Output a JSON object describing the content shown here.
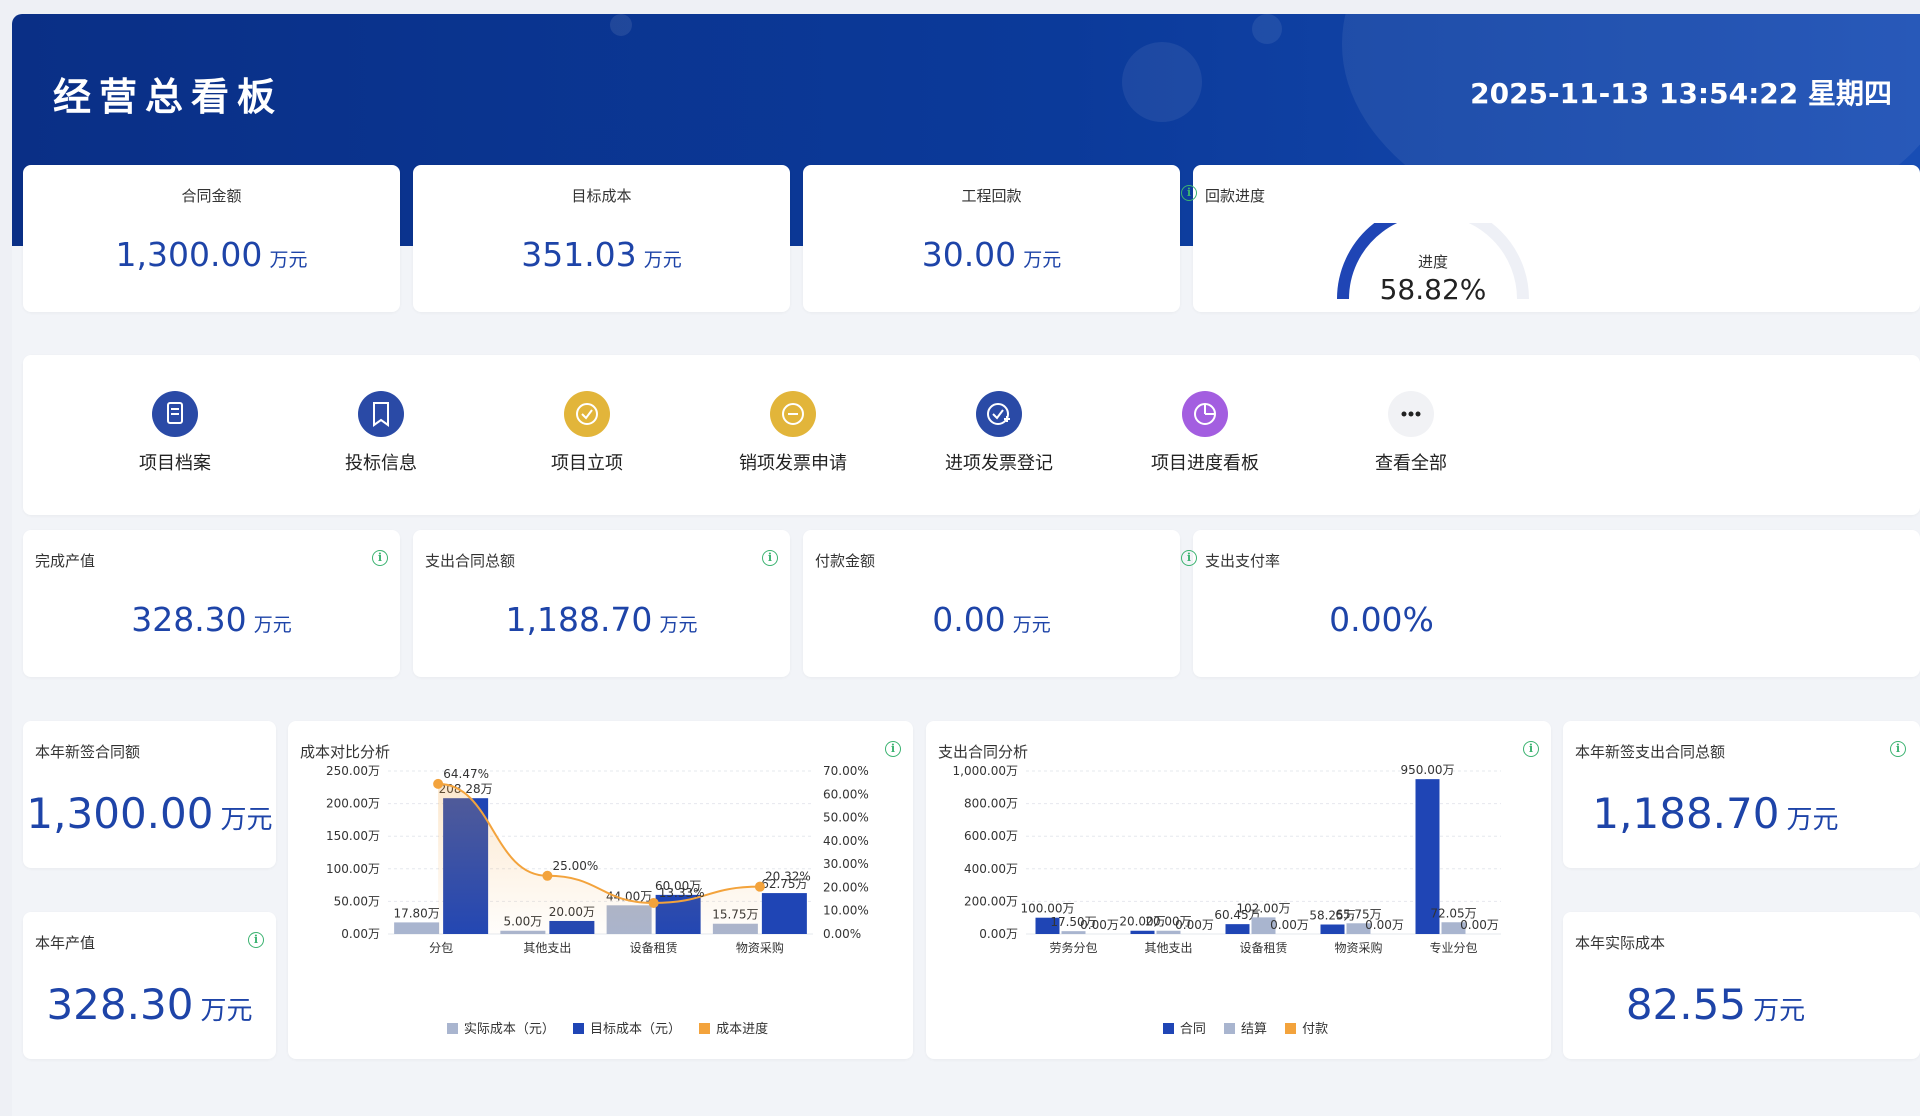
{
  "header": {
    "title": "经营总看板",
    "datetime": "2025-11-13 13:54:22 星期四"
  },
  "top_stats": [
    {
      "label": "合同金额",
      "value": "1,300.00",
      "unit": "万元"
    },
    {
      "label": "目标成本",
      "value": "351.03",
      "unit": "万元"
    },
    {
      "label": "工程回款",
      "value": "30.00",
      "unit": "万元"
    }
  ],
  "progress_card": {
    "label": "回款进度",
    "gauge_label": "进度",
    "gauge_value": "58.82%",
    "gauge_fraction": 0.5882
  },
  "shortcuts": [
    {
      "label": "项目档案",
      "icon": "file-icon",
      "color": "#2a4aa6"
    },
    {
      "label": "投标信息",
      "icon": "bookmark-icon",
      "color": "#2a4aa6"
    },
    {
      "label": "项目立项",
      "icon": "check-circle-icon",
      "color": "#e2b53a"
    },
    {
      "label": "销项发票申请",
      "icon": "minus-circle-icon",
      "color": "#e2b53a"
    },
    {
      "label": "进项发票登记",
      "icon": "check-plus-icon",
      "color": "#2a4aa6"
    },
    {
      "label": "项目进度看板",
      "icon": "pie-chart-icon",
      "color": "#a35ee0"
    },
    {
      "label": "查看全部",
      "icon": "more-icon",
      "color": "#f1f2f5"
    }
  ],
  "mid_stats": [
    {
      "label": "完成产值",
      "value": "328.30",
      "unit": "万元"
    },
    {
      "label": "支出合同总额",
      "value": "1,188.70",
      "unit": "万元"
    },
    {
      "label": "付款金额",
      "value": "0.00",
      "unit": "万元"
    },
    {
      "label": "支出支付率",
      "value": "0.00%",
      "unit": ""
    }
  ],
  "side_stats": {
    "new_contract": {
      "label": "本年新签合同额",
      "value": "1,300.00",
      "unit": "万元"
    },
    "annual_output": {
      "label": "本年产值",
      "value": "328.30",
      "unit": "万元"
    },
    "new_expense_contract": {
      "label": "本年新签支出合同总额",
      "value": "1,188.70",
      "unit": "万元"
    },
    "actual_cost": {
      "label": "本年实际成本",
      "value": "82.55",
      "unit": "万元"
    }
  },
  "colors": {
    "header_blue": "#0a2f86",
    "value_blue": "#1e44a8",
    "bar_dark": "#1f45b5",
    "bar_gray": "#a9b5cf",
    "line_orange": "#f3a33c",
    "info_green": "#3cb371"
  },
  "chart_data": [
    {
      "type": "bar",
      "title": "成本对比分析",
      "categories": [
        "分包",
        "其他支出",
        "设备租赁",
        "物资采购"
      ],
      "series": [
        {
          "name": "实际成本（元）",
          "values": [
            17.8,
            5.0,
            44.0,
            15.75
          ],
          "labels": [
            "17.80万",
            "5.00万",
            "44.00万",
            "15.75万"
          ]
        },
        {
          "name": "目标成本（元）",
          "values": [
            208.28,
            20.0,
            60.0,
            62.75
          ],
          "labels": [
            "208.28万",
            "20.00万",
            "60.00万",
            "62.75万"
          ]
        },
        {
          "name": "成本进度",
          "type": "line",
          "axis": "right",
          "values": [
            64.47,
            25.0,
            13.33,
            20.32
          ],
          "labels": [
            "64.47%",
            "25.00%",
            "13.33%",
            "20.32%"
          ]
        }
      ],
      "y_ticks": [
        "0.00万",
        "50.00万",
        "100.00万",
        "150.00万",
        "200.00万",
        "250.00万"
      ],
      "y2_ticks": [
        "0.00%",
        "10.00%",
        "20.00%",
        "30.00%",
        "40.00%",
        "50.00%",
        "60.00%",
        "70.00%"
      ],
      "ylim": [
        0,
        250
      ],
      "y2lim": [
        0,
        70
      ],
      "legend": "bottom"
    },
    {
      "type": "bar",
      "title": "支出合同分析",
      "categories": [
        "劳务分包",
        "其他支出",
        "设备租赁",
        "物资采购",
        "专业分包"
      ],
      "series": [
        {
          "name": "合同",
          "values": [
            100.0,
            20.0,
            60.45,
            58.25,
            950.0
          ],
          "labels": [
            "100.00万",
            "20.00万",
            "60.45万",
            "58.25万",
            "950.00万"
          ]
        },
        {
          "name": "结算",
          "values": [
            17.5,
            20.0,
            102.0,
            65.75,
            72.05
          ],
          "labels": [
            "17.50万",
            "20.00万",
            "102.00万",
            "65.75万",
            "72.05万"
          ]
        },
        {
          "name": "付款",
          "values": [
            0,
            0,
            0,
            0,
            0
          ],
          "labels": [
            "0.00万",
            "0.00万",
            "0.00万",
            "0.00万",
            "0.00万"
          ]
        }
      ],
      "y_ticks": [
        "0.00万",
        "200.00万",
        "400.00万",
        "600.00万",
        "800.00万",
        "1,000.00万"
      ],
      "ylim": [
        0,
        1000
      ],
      "legend": "bottom"
    }
  ]
}
